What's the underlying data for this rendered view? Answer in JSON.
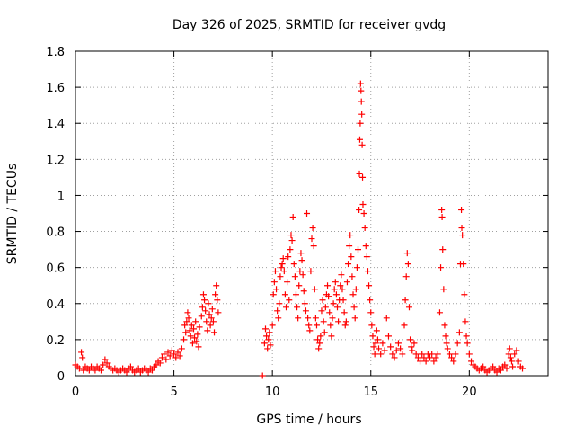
{
  "chart_data": {
    "type": "scatter",
    "title": "Day 326 of 2025, SRMTID for receiver gvdg",
    "xlabel": "GPS time / hours",
    "ylabel": "SRMTID / TECUs",
    "xlim": [
      0,
      24
    ],
    "ylim": [
      0,
      1.8
    ],
    "xticks": [
      0,
      5,
      10,
      15,
      20
    ],
    "xtick_labels": [
      "0",
      "5",
      "10",
      "15",
      "20"
    ],
    "yticks": [
      0,
      0.2,
      0.4,
      0.6,
      0.8,
      1,
      1.2,
      1.4,
      1.6,
      1.8
    ],
    "ytick_labels": [
      "0",
      "0.2",
      "0.4",
      "0.6",
      "0.8",
      "1",
      "1.2",
      "1.4",
      "1.6",
      "1.8"
    ],
    "grid": true,
    "marker": "+",
    "marker_color": "#ff0000",
    "series": [
      {
        "name": "SRMTID",
        "points": [
          [
            0.0,
            0.06
          ],
          [
            0.1,
            0.05
          ],
          [
            0.2,
            0.04
          ],
          [
            0.3,
            0.13
          ],
          [
            0.35,
            0.1
          ],
          [
            0.4,
            0.03
          ],
          [
            0.5,
            0.05
          ],
          [
            0.6,
            0.04
          ],
          [
            0.7,
            0.03
          ],
          [
            0.8,
            0.05
          ],
          [
            0.9,
            0.04
          ],
          [
            1.0,
            0.03
          ],
          [
            1.1,
            0.05
          ],
          [
            1.2,
            0.04
          ],
          [
            1.3,
            0.03
          ],
          [
            1.4,
            0.06
          ],
          [
            1.5,
            0.09
          ],
          [
            1.6,
            0.07
          ],
          [
            1.7,
            0.05
          ],
          [
            1.8,
            0.04
          ],
          [
            1.9,
            0.03
          ],
          [
            2.0,
            0.04
          ],
          [
            2.1,
            0.03
          ],
          [
            2.2,
            0.02
          ],
          [
            2.3,
            0.03
          ],
          [
            2.4,
            0.04
          ],
          [
            2.5,
            0.03
          ],
          [
            2.6,
            0.02
          ],
          [
            2.7,
            0.04
          ],
          [
            2.8,
            0.05
          ],
          [
            2.9,
            0.03
          ],
          [
            3.0,
            0.02
          ],
          [
            3.1,
            0.03
          ],
          [
            3.2,
            0.04
          ],
          [
            3.3,
            0.02
          ],
          [
            3.4,
            0.03
          ],
          [
            3.5,
            0.04
          ],
          [
            3.6,
            0.03
          ],
          [
            3.7,
            0.02
          ],
          [
            3.8,
            0.04
          ],
          [
            3.9,
            0.03
          ],
          [
            4.0,
            0.05
          ],
          [
            4.1,
            0.06
          ],
          [
            4.2,
            0.08
          ],
          [
            4.3,
            0.07
          ],
          [
            4.4,
            0.1
          ],
          [
            4.5,
            0.12
          ],
          [
            4.6,
            0.09
          ],
          [
            4.7,
            0.13
          ],
          [
            4.8,
            0.11
          ],
          [
            4.9,
            0.14
          ],
          [
            5.0,
            0.12
          ],
          [
            5.1,
            0.1
          ],
          [
            5.2,
            0.13
          ],
          [
            5.3,
            0.11
          ],
          [
            5.4,
            0.15
          ],
          [
            5.5,
            0.2
          ],
          [
            5.55,
            0.28
          ],
          [
            5.6,
            0.24
          ],
          [
            5.65,
            0.3
          ],
          [
            5.7,
            0.35
          ],
          [
            5.75,
            0.32
          ],
          [
            5.8,
            0.25
          ],
          [
            5.85,
            0.22
          ],
          [
            5.9,
            0.28
          ],
          [
            5.95,
            0.18
          ],
          [
            6.0,
            0.26
          ],
          [
            6.05,
            0.21
          ],
          [
            6.1,
            0.3
          ],
          [
            6.15,
            0.19
          ],
          [
            6.2,
            0.23
          ],
          [
            6.25,
            0.16
          ],
          [
            6.3,
            0.27
          ],
          [
            6.4,
            0.33
          ],
          [
            6.45,
            0.38
          ],
          [
            6.5,
            0.45
          ],
          [
            6.55,
            0.42
          ],
          [
            6.6,
            0.36
          ],
          [
            6.65,
            0.3
          ],
          [
            6.7,
            0.25
          ],
          [
            6.75,
            0.4
          ],
          [
            6.8,
            0.34
          ],
          [
            6.85,
            0.28
          ],
          [
            6.9,
            0.32
          ],
          [
            6.95,
            0.37
          ],
          [
            7.0,
            0.3
          ],
          [
            7.05,
            0.24
          ],
          [
            7.1,
            0.45
          ],
          [
            7.15,
            0.5
          ],
          [
            7.2,
            0.42
          ],
          [
            7.25,
            0.35
          ],
          [
            9.5,
            0.0
          ],
          [
            9.6,
            0.18
          ],
          [
            9.65,
            0.26
          ],
          [
            9.7,
            0.22
          ],
          [
            9.75,
            0.15
          ],
          [
            9.8,
            0.2
          ],
          [
            9.85,
            0.24
          ],
          [
            9.9,
            0.17
          ],
          [
            10.0,
            0.28
          ],
          [
            10.05,
            0.45
          ],
          [
            10.1,
            0.52
          ],
          [
            10.15,
            0.58
          ],
          [
            10.2,
            0.48
          ],
          [
            10.25,
            0.36
          ],
          [
            10.3,
            0.32
          ],
          [
            10.35,
            0.4
          ],
          [
            10.4,
            0.55
          ],
          [
            10.45,
            0.6
          ],
          [
            10.5,
            0.62
          ],
          [
            10.55,
            0.65
          ],
          [
            10.6,
            0.58
          ],
          [
            10.65,
            0.45
          ],
          [
            10.7,
            0.38
          ],
          [
            10.75,
            0.52
          ],
          [
            10.8,
            0.66
          ],
          [
            10.85,
            0.42
          ],
          [
            10.9,
            0.7
          ],
          [
            10.95,
            0.78
          ],
          [
            11.0,
            0.75
          ],
          [
            11.05,
            0.88
          ],
          [
            11.1,
            0.62
          ],
          [
            11.15,
            0.55
          ],
          [
            11.2,
            0.45
          ],
          [
            11.25,
            0.38
          ],
          [
            11.3,
            0.32
          ],
          [
            11.35,
            0.5
          ],
          [
            11.4,
            0.58
          ],
          [
            11.45,
            0.68
          ],
          [
            11.5,
            0.64
          ],
          [
            11.55,
            0.56
          ],
          [
            11.6,
            0.47
          ],
          [
            11.65,
            0.4
          ],
          [
            11.7,
            0.36
          ],
          [
            11.75,
            0.9
          ],
          [
            11.8,
            0.32
          ],
          [
            11.85,
            0.28
          ],
          [
            11.9,
            0.25
          ],
          [
            11.95,
            0.58
          ],
          [
            12.0,
            0.76
          ],
          [
            12.05,
            0.82
          ],
          [
            12.1,
            0.72
          ],
          [
            12.15,
            0.48
          ],
          [
            12.2,
            0.32
          ],
          [
            12.25,
            0.28
          ],
          [
            12.3,
            0.2
          ],
          [
            12.35,
            0.15
          ],
          [
            12.4,
            0.18
          ],
          [
            12.45,
            0.22
          ],
          [
            12.5,
            0.36
          ],
          [
            12.55,
            0.42
          ],
          [
            12.6,
            0.3
          ],
          [
            12.65,
            0.24
          ],
          [
            12.7,
            0.38
          ],
          [
            12.75,
            0.45
          ],
          [
            12.8,
            0.5
          ],
          [
            12.85,
            0.44
          ],
          [
            12.9,
            0.35
          ],
          [
            12.95,
            0.28
          ],
          [
            13.0,
            0.22
          ],
          [
            13.05,
            0.32
          ],
          [
            13.1,
            0.4
          ],
          [
            13.15,
            0.48
          ],
          [
            13.2,
            0.52
          ],
          [
            13.25,
            0.45
          ],
          [
            13.3,
            0.38
          ],
          [
            13.35,
            0.3
          ],
          [
            13.4,
            0.42
          ],
          [
            13.45,
            0.5
          ],
          [
            13.5,
            0.56
          ],
          [
            13.55,
            0.48
          ],
          [
            13.6,
            0.42
          ],
          [
            13.65,
            0.35
          ],
          [
            13.7,
            0.28
          ],
          [
            13.75,
            0.3
          ],
          [
            13.8,
            0.52
          ],
          [
            13.85,
            0.62
          ],
          [
            13.9,
            0.72
          ],
          [
            13.95,
            0.78
          ],
          [
            14.0,
            0.66
          ],
          [
            14.05,
            0.55
          ],
          [
            14.1,
            0.45
          ],
          [
            14.15,
            0.38
          ],
          [
            14.2,
            0.32
          ],
          [
            14.25,
            0.48
          ],
          [
            14.3,
            0.6
          ],
          [
            14.35,
            0.7
          ],
          [
            14.4,
            0.92
          ],
          [
            14.42,
            1.12
          ],
          [
            14.44,
            1.31
          ],
          [
            14.46,
            1.4
          ],
          [
            14.48,
            1.62
          ],
          [
            14.5,
            1.58
          ],
          [
            14.52,
            1.52
          ],
          [
            14.54,
            1.45
          ],
          [
            14.56,
            1.28
          ],
          [
            14.58,
            1.1
          ],
          [
            14.6,
            0.95
          ],
          [
            14.65,
            0.9
          ],
          [
            14.7,
            0.82
          ],
          [
            14.75,
            0.72
          ],
          [
            14.8,
            0.66
          ],
          [
            14.85,
            0.58
          ],
          [
            14.9,
            0.5
          ],
          [
            14.95,
            0.42
          ],
          [
            15.0,
            0.35
          ],
          [
            15.05,
            0.28
          ],
          [
            15.1,
            0.22
          ],
          [
            15.15,
            0.16
          ],
          [
            15.2,
            0.12
          ],
          [
            15.25,
            0.18
          ],
          [
            15.3,
            0.25
          ],
          [
            15.35,
            0.2
          ],
          [
            15.4,
            0.15
          ],
          [
            15.5,
            0.12
          ],
          [
            15.6,
            0.18
          ],
          [
            15.7,
            0.14
          ],
          [
            15.8,
            0.32
          ],
          [
            15.9,
            0.22
          ],
          [
            16.0,
            0.16
          ],
          [
            16.1,
            0.12
          ],
          [
            16.2,
            0.1
          ],
          [
            16.3,
            0.14
          ],
          [
            16.4,
            0.18
          ],
          [
            16.5,
            0.15
          ],
          [
            16.6,
            0.12
          ],
          [
            16.7,
            0.28
          ],
          [
            16.75,
            0.42
          ],
          [
            16.8,
            0.55
          ],
          [
            16.85,
            0.68
          ],
          [
            16.9,
            0.62
          ],
          [
            16.95,
            0.38
          ],
          [
            17.0,
            0.2
          ],
          [
            17.05,
            0.16
          ],
          [
            17.1,
            0.14
          ],
          [
            17.2,
            0.18
          ],
          [
            17.3,
            0.12
          ],
          [
            17.4,
            0.1
          ],
          [
            17.5,
            0.08
          ],
          [
            17.6,
            0.12
          ],
          [
            17.7,
            0.1
          ],
          [
            17.8,
            0.08
          ],
          [
            17.9,
            0.12
          ],
          [
            18.0,
            0.1
          ],
          [
            18.1,
            0.12
          ],
          [
            18.2,
            0.08
          ],
          [
            18.3,
            0.1
          ],
          [
            18.4,
            0.12
          ],
          [
            18.5,
            0.35
          ],
          [
            18.55,
            0.6
          ],
          [
            18.6,
            0.92
          ],
          [
            18.62,
            0.88
          ],
          [
            18.65,
            0.7
          ],
          [
            18.7,
            0.48
          ],
          [
            18.75,
            0.28
          ],
          [
            18.8,
            0.22
          ],
          [
            18.85,
            0.18
          ],
          [
            18.9,
            0.15
          ],
          [
            19.0,
            0.12
          ],
          [
            19.1,
            0.1
          ],
          [
            19.2,
            0.08
          ],
          [
            19.3,
            0.12
          ],
          [
            19.4,
            0.18
          ],
          [
            19.5,
            0.24
          ],
          [
            19.55,
            0.62
          ],
          [
            19.6,
            0.92
          ],
          [
            19.62,
            0.82
          ],
          [
            19.65,
            0.78
          ],
          [
            19.7,
            0.62
          ],
          [
            19.75,
            0.45
          ],
          [
            19.8,
            0.3
          ],
          [
            19.85,
            0.22
          ],
          [
            19.9,
            0.18
          ],
          [
            20.0,
            0.12
          ],
          [
            20.1,
            0.08
          ],
          [
            20.2,
            0.06
          ],
          [
            20.3,
            0.05
          ],
          [
            20.4,
            0.04
          ],
          [
            20.5,
            0.03
          ],
          [
            20.6,
            0.04
          ],
          [
            20.7,
            0.05
          ],
          [
            20.8,
            0.03
          ],
          [
            20.9,
            0.02
          ],
          [
            21.0,
            0.03
          ],
          [
            21.1,
            0.04
          ],
          [
            21.2,
            0.05
          ],
          [
            21.3,
            0.03
          ],
          [
            21.4,
            0.02
          ],
          [
            21.5,
            0.04
          ],
          [
            21.6,
            0.03
          ],
          [
            21.7,
            0.05
          ],
          [
            21.8,
            0.06
          ],
          [
            21.9,
            0.04
          ],
          [
            22.0,
            0.12
          ],
          [
            22.05,
            0.15
          ],
          [
            22.1,
            0.1
          ],
          [
            22.15,
            0.08
          ],
          [
            22.2,
            0.05
          ],
          [
            22.3,
            0.12
          ],
          [
            22.4,
            0.14
          ],
          [
            22.5,
            0.08
          ],
          [
            22.6,
            0.05
          ],
          [
            22.7,
            0.04
          ]
        ]
      }
    ]
  }
}
